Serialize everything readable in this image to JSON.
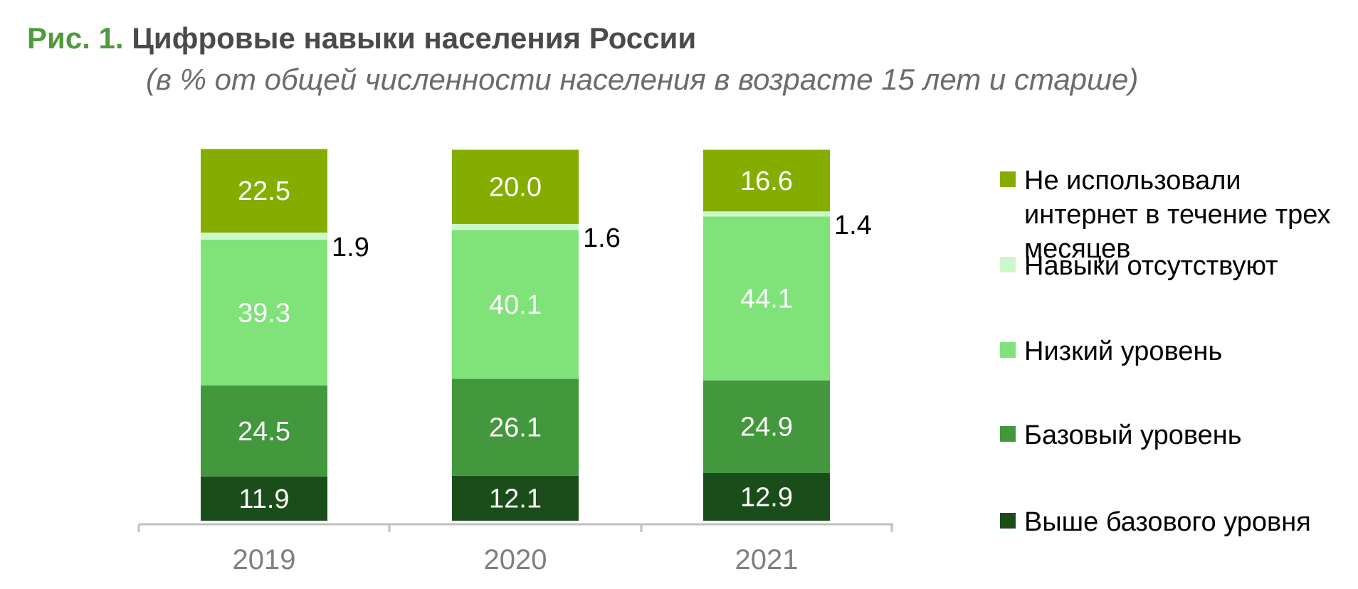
{
  "header": {
    "figure_label": "Рис. 1.",
    "title": "Цифровые навыки населения России",
    "subtitle": "(в % от общей численности населения в возрасте 15 лет и старше)"
  },
  "chart_data": {
    "type": "bar",
    "stacked": true,
    "categories": [
      "2019",
      "2020",
      "2021"
    ],
    "series": [
      {
        "name": "Выше базового уровня",
        "color": "#1b4d1b",
        "values": [
          11.9,
          12.1,
          12.9
        ]
      },
      {
        "name": "Базовый уровень",
        "color": "#43973d",
        "values": [
          24.5,
          26.1,
          24.9
        ]
      },
      {
        "name": "Низкий уровень",
        "color": "#7fe37a",
        "values": [
          39.3,
          40.1,
          44.1
        ]
      },
      {
        "name": "Навыки отсутствуют",
        "color": "#cdf7c8",
        "values": [
          1.9,
          1.6,
          1.4
        ]
      },
      {
        "name": "Не использовали интернет в течение трех месяцев",
        "color": "#84ad00",
        "values": [
          22.5,
          20.0,
          16.6
        ]
      }
    ],
    "ylim": [
      0,
      100
    ],
    "grid": false,
    "legend_position": "right"
  }
}
